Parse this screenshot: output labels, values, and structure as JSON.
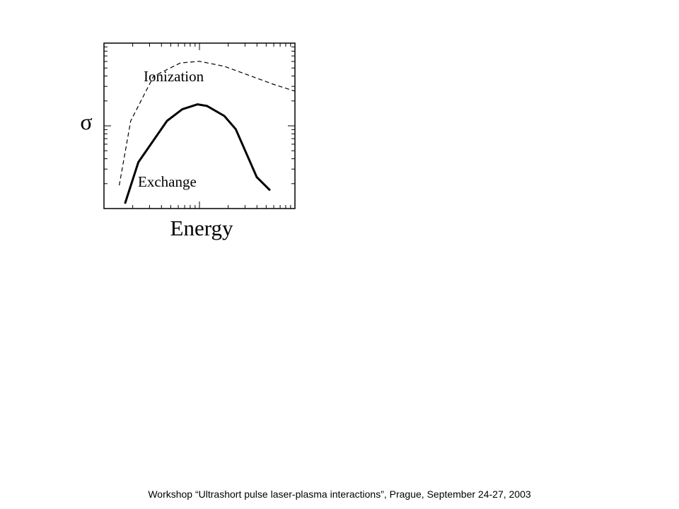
{
  "chart_data": {
    "type": "line",
    "xlabel": "Energy",
    "ylabel": "σ",
    "x_scale": "log",
    "y_scale": "log",
    "tick_labels": "none",
    "grid": false,
    "series": [
      {
        "name": "Ionization",
        "style": "dashed",
        "points": [
          [
            0.08,
            0.14
          ],
          [
            0.14,
            0.53
          ],
          [
            0.26,
            0.8
          ],
          [
            0.4,
            0.88
          ],
          [
            0.5,
            0.89
          ],
          [
            0.63,
            0.86
          ],
          [
            0.89,
            0.75
          ],
          [
            1.0,
            0.71
          ]
        ]
      },
      {
        "name": "Exchange",
        "style": "solid",
        "points": [
          [
            0.11,
            0.03
          ],
          [
            0.18,
            0.28
          ],
          [
            0.33,
            0.53
          ],
          [
            0.41,
            0.6
          ],
          [
            0.49,
            0.63
          ],
          [
            0.54,
            0.62
          ],
          [
            0.63,
            0.56
          ],
          [
            0.69,
            0.48
          ],
          [
            0.8,
            0.19
          ],
          [
            0.87,
            0.11
          ]
        ]
      }
    ],
    "colors": {
      "axis": "#000000",
      "line": "#000000"
    }
  },
  "footer": "Workshop “Ultrashort pulse laser-plasma interactions”, Prague, September 24-27, 2003"
}
